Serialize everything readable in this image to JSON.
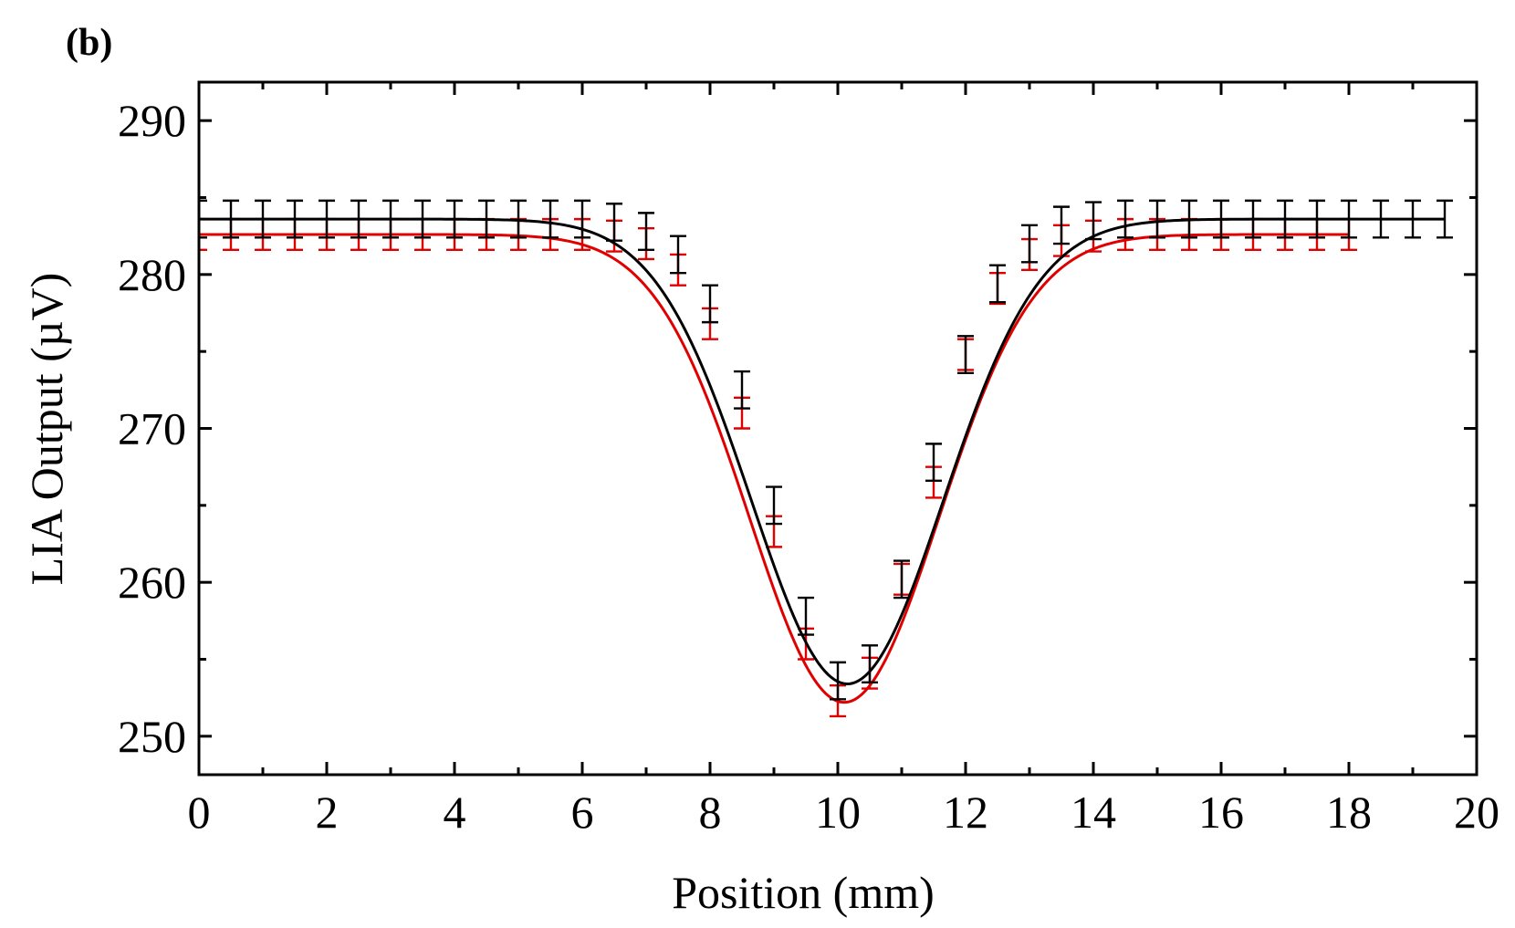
{
  "chart_data": {
    "type": "line",
    "panel_label": "(b)",
    "title": "",
    "xlabel": "Position (mm)",
    "ylabel": "LIA Output (µV)",
    "xlim": [
      0,
      20
    ],
    "ylim": [
      247.5,
      292.5
    ],
    "x_ticks": [
      0,
      2,
      4,
      6,
      8,
      10,
      12,
      14,
      16,
      18,
      20
    ],
    "y_ticks": [
      250,
      260,
      270,
      280,
      290
    ],
    "grid": false,
    "legend": "none",
    "series": [
      {
        "color": "#e00000",
        "points_x": [
          0,
          0.5,
          1,
          1.5,
          2,
          2.5,
          3,
          3.5,
          4,
          4.5,
          5,
          5.5,
          6,
          6.5,
          7,
          7.5,
          8,
          8.5,
          9,
          9.5,
          10,
          10.5,
          11,
          11.5,
          12,
          12.5,
          13,
          13.5,
          14,
          14.5,
          15,
          15.5,
          16,
          16.5,
          17,
          17.5,
          18
        ],
        "points_y": [
          282.6,
          282.6,
          282.6,
          282.6,
          282.6,
          282.6,
          282.6,
          282.6,
          282.6,
          282.6,
          282.6,
          282.6,
          282.6,
          282.5,
          282.0,
          280.3,
          276.8,
          271.0,
          263.3,
          256.0,
          252.3,
          254.1,
          260.2,
          266.5,
          274.8,
          279.1,
          281.3,
          282.2,
          282.5,
          282.6,
          282.6,
          282.6,
          282.6,
          282.6,
          282.6,
          282.6,
          282.6
        ],
        "error": 1.0,
        "fit": {
          "baseline": 282.6,
          "depth": 30.4,
          "center": 10.1,
          "width": 1.48
        }
      },
      {
        "color": "#000000",
        "points_x": [
          0,
          0.5,
          1,
          1.5,
          2,
          2.5,
          3,
          3.5,
          4,
          4.5,
          5,
          5.5,
          6,
          6.5,
          7,
          7.5,
          8,
          8.5,
          9,
          9.5,
          10,
          10.5,
          11,
          11.5,
          12,
          12.5,
          13,
          13.5,
          14,
          14.5,
          15,
          15.5,
          16,
          16.5,
          17,
          17.5,
          18,
          18.5,
          19,
          19.5
        ],
        "points_y": [
          283.6,
          283.6,
          283.6,
          283.6,
          283.6,
          283.6,
          283.6,
          283.6,
          283.6,
          283.6,
          283.6,
          283.6,
          283.6,
          283.4,
          282.8,
          281.3,
          278.1,
          272.5,
          265.0,
          257.8,
          253.6,
          254.7,
          260.2,
          267.8,
          274.8,
          279.4,
          282.0,
          283.2,
          283.5,
          283.6,
          283.6,
          283.6,
          283.6,
          283.6,
          283.6,
          283.6,
          283.6,
          283.6,
          283.6,
          283.6
        ],
        "error": 1.2,
        "fit": {
          "baseline": 283.6,
          "depth": 30.2,
          "center": 10.15,
          "width": 1.5
        }
      }
    ]
  }
}
